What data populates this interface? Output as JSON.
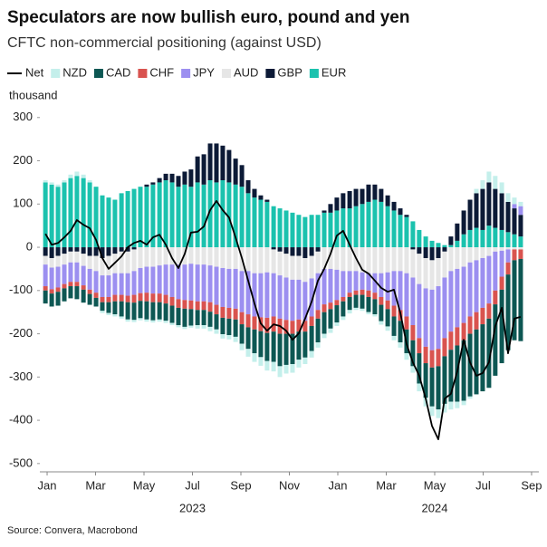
{
  "chart_data": {
    "type": "bar",
    "stacked": true,
    "title": "Speculators are now bullish euro, pound and yen",
    "subtitle": "CFTC non-commercial positioning (against USD)",
    "y_axis_label": "thousand",
    "source": "Source: Convera, Macrobond",
    "x": [
      -0.07,
      0.19,
      0.45,
      0.71,
      0.97,
      1.23,
      1.5,
      1.76,
      2.02,
      2.28,
      2.54,
      2.8,
      3.07,
      3.33,
      3.59,
      3.85,
      4.11,
      4.37,
      4.64,
      4.9,
      5.16,
      5.42,
      5.68,
      5.94,
      6.21,
      6.47,
      6.73,
      6.99,
      7.25,
      7.51,
      7.78,
      8.04,
      8.3,
      8.56,
      8.82,
      9.08,
      9.35,
      9.61,
      9.87,
      10.13,
      10.39,
      10.65,
      10.92,
      11.18,
      11.44,
      11.7,
      11.96,
      12.22,
      12.49,
      12.75,
      13.01,
      13.27,
      13.53,
      13.79,
      14.06,
      14.32,
      14.58,
      14.84,
      15.1,
      15.36,
      15.63,
      15.89,
      16.15,
      16.41,
      16.67,
      16.93,
      17.2,
      17.46,
      17.72,
      17.98,
      18.24,
      18.5,
      18.77,
      19.03,
      19.29,
      19.55
    ],
    "xlim": [
      -0.3,
      20.3
    ],
    "xticks": [
      {
        "value": 0,
        "label": "Jan"
      },
      {
        "value": 2,
        "label": "Mar"
      },
      {
        "value": 4,
        "label": "May"
      },
      {
        "value": 6,
        "label": "Jul"
      },
      {
        "value": 8,
        "label": "Sep"
      },
      {
        "value": 10,
        "label": "Nov"
      },
      {
        "value": 12,
        "label": "Jan"
      },
      {
        "value": 14,
        "label": "Mar"
      },
      {
        "value": 16,
        "label": "May"
      },
      {
        "value": 18,
        "label": "Jul"
      },
      {
        "value": 20,
        "label": "Sep"
      }
    ],
    "year_labels": [
      {
        "value": 6,
        "label": "2023"
      },
      {
        "value": 16,
        "label": "2024"
      }
    ],
    "ylim": [
      -515,
      310
    ],
    "yticks": [
      -500,
      -400,
      -300,
      -200,
      -100,
      0,
      100,
      200,
      300
    ],
    "grid": false,
    "legend": "top-left",
    "series": [
      {
        "name": "Net",
        "color": "#000000",
        "type": "line",
        "values": [
          31,
          6,
          10,
          23,
          38,
          63,
          52,
          44,
          17,
          -25,
          -50,
          -36,
          -21,
          0,
          10,
          15,
          6,
          23,
          29,
          6,
          -25,
          -48,
          -15,
          34,
          36,
          48,
          86,
          107,
          86,
          69,
          23,
          -25,
          -77,
          -130,
          -176,
          -193,
          -178,
          -182,
          -193,
          -214,
          -199,
          -165,
          -126,
          -77,
          -50,
          -15,
          27,
          38,
          6,
          -25,
          -52,
          -61,
          -77,
          -94,
          -103,
          -98,
          -151,
          -224,
          -266,
          -297,
          -350,
          -413,
          -444,
          -350,
          -339,
          -287,
          -214,
          -266,
          -297,
          -291,
          -266,
          -182,
          -140,
          -245,
          -165,
          -161
        ]
      },
      {
        "name": "NZD",
        "color": "#c4efeb",
        "values": [
          5,
          5,
          5,
          5,
          8,
          10,
          8,
          5,
          0,
          -5,
          -5,
          -5,
          -5,
          -5,
          -5,
          -5,
          -5,
          -5,
          -5,
          -5,
          -5,
          -5,
          -5,
          -5,
          -8,
          -8,
          -10,
          -10,
          -10,
          -10,
          -12,
          -15,
          -18,
          -20,
          -20,
          -22,
          -22,
          -25,
          -20,
          -20,
          -18,
          -15,
          -15,
          -12,
          -10,
          -10,
          -8,
          -8,
          -8,
          -5,
          -5,
          -5,
          -5,
          -8,
          -10,
          -10,
          -12,
          -15,
          -15,
          -18,
          -20,
          -22,
          -20,
          -20,
          -18,
          -15,
          -10,
          -5,
          10,
          20,
          25,
          30,
          25,
          20,
          15,
          10
        ]
      },
      {
        "name": "CAD",
        "color": "#0d5753",
        "values": [
          -30,
          -30,
          -32,
          -30,
          -28,
          -30,
          -30,
          -25,
          -20,
          -20,
          -25,
          -30,
          -35,
          -40,
          -40,
          -40,
          -42,
          -42,
          -40,
          -40,
          -40,
          -40,
          -42,
          -38,
          -35,
          -35,
          -35,
          -35,
          -38,
          -38,
          -40,
          -45,
          -50,
          -55,
          -60,
          -65,
          -70,
          -75,
          -72,
          -70,
          -65,
          -60,
          -58,
          -55,
          -50,
          -45,
          -40,
          -35,
          -30,
          -30,
          -32,
          -35,
          -35,
          -38,
          -40,
          -45,
          -50,
          -55,
          -60,
          -70,
          -80,
          -90,
          -100,
          -110,
          -120,
          -130,
          -140,
          -145,
          -150,
          -155,
          -160,
          -165,
          -170,
          -175,
          -185,
          -190
        ]
      },
      {
        "name": "CHF",
        "color": "#d9534f",
        "values": [
          -10,
          -10,
          -10,
          -10,
          -10,
          -10,
          -10,
          -10,
          -12,
          -12,
          -12,
          -15,
          -15,
          -15,
          -18,
          -18,
          -20,
          -20,
          -20,
          -20,
          -20,
          -20,
          -20,
          -20,
          -20,
          -20,
          -22,
          -22,
          -25,
          -25,
          -25,
          -28,
          -30,
          -30,
          -32,
          -35,
          -35,
          -35,
          -32,
          -30,
          -28,
          -25,
          -22,
          -20,
          -18,
          -15,
          -12,
          -10,
          -10,
          -10,
          -12,
          -15,
          -15,
          -18,
          -20,
          -25,
          -25,
          -30,
          -35,
          -35,
          -38,
          -40,
          -40,
          -42,
          -42,
          -42,
          -40,
          -40,
          -40,
          -38,
          -35,
          -32,
          -30,
          -28,
          -25,
          -22
        ]
      },
      {
        "name": "JPY",
        "color": "#9c8ff0",
        "values": [
          -50,
          -50,
          -48,
          -45,
          -45,
          -45,
          -45,
          -48,
          -50,
          -50,
          -50,
          -50,
          -50,
          -52,
          -55,
          -58,
          -60,
          -62,
          -65,
          -70,
          -75,
          -80,
          -82,
          -85,
          -85,
          -85,
          -85,
          -88,
          -90,
          -90,
          -92,
          -95,
          -100,
          -100,
          -102,
          -105,
          -100,
          -100,
          -98,
          -95,
          -92,
          -90,
          -88,
          -85,
          -82,
          -78,
          -70,
          -60,
          -50,
          -45,
          -40,
          -40,
          -45,
          -55,
          -65,
          -80,
          -90,
          -100,
          -110,
          -125,
          -135,
          -140,
          -145,
          -140,
          -140,
          -135,
          -130,
          -125,
          -120,
          -115,
          -110,
          -90,
          -60,
          -30,
          10,
          20
        ]
      },
      {
        "name": "AUD",
        "color": "#e6e6e6",
        "values": [
          -20,
          -22,
          -25,
          -25,
          -25,
          -25,
          -28,
          -30,
          -35,
          -40,
          -45,
          -45,
          -50,
          -50,
          -50,
          -48,
          -45,
          -45,
          -42,
          -40,
          -40,
          -40,
          -40,
          -38,
          -40,
          -40,
          -42,
          -45,
          -48,
          -50,
          -50,
          -55,
          -55,
          -60,
          -60,
          -58,
          -55,
          -55,
          -55,
          -55,
          -55,
          -55,
          -52,
          -50,
          -50,
          -50,
          -52,
          -55,
          -55,
          -55,
          -58,
          -60,
          -60,
          -60,
          -58,
          -55,
          -55,
          -60,
          -65,
          -70,
          -70,
          -68,
          -65,
          -60,
          -55,
          -50,
          -45,
          -35,
          -30,
          -25,
          -20,
          -10,
          -8,
          -5,
          -5,
          -5
        ]
      },
      {
        "name": "GBP",
        "color": "#0c1a36",
        "values": [
          -20,
          -25,
          -20,
          -15,
          -10,
          -10,
          -15,
          -20,
          -20,
          -25,
          -20,
          -15,
          -10,
          -10,
          -5,
          0,
          5,
          5,
          10,
          15,
          20,
          25,
          30,
          40,
          60,
          70,
          85,
          90,
          80,
          75,
          60,
          50,
          30,
          20,
          10,
          5,
          -5,
          -10,
          -15,
          -20,
          -20,
          -25,
          -20,
          -10,
          5,
          20,
          30,
          35,
          40,
          40,
          35,
          40,
          35,
          30,
          25,
          20,
          15,
          5,
          -5,
          -15,
          -25,
          -30,
          -25,
          -10,
          20,
          40,
          55,
          70,
          80,
          95,
          100,
          90,
          85,
          70,
          60,
          50
        ]
      },
      {
        "name": "EUR",
        "color": "#1bc2ae",
        "values": [
          150,
          145,
          140,
          150,
          160,
          165,
          160,
          150,
          140,
          120,
          115,
          110,
          125,
          130,
          135,
          140,
          140,
          145,
          150,
          155,
          150,
          140,
          145,
          140,
          150,
          145,
          155,
          150,
          155,
          150,
          145,
          140,
          125,
          115,
          110,
          105,
          95,
          90,
          85,
          80,
          75,
          70,
          75,
          75,
          80,
          80,
          85,
          90,
          90,
          95,
          100,
          105,
          110,
          105,
          95,
          85,
          75,
          70,
          60,
          40,
          25,
          15,
          10,
          5,
          5,
          15,
          30,
          40,
          45,
          40,
          50,
          45,
          40,
          35,
          30,
          25
        ]
      }
    ]
  }
}
